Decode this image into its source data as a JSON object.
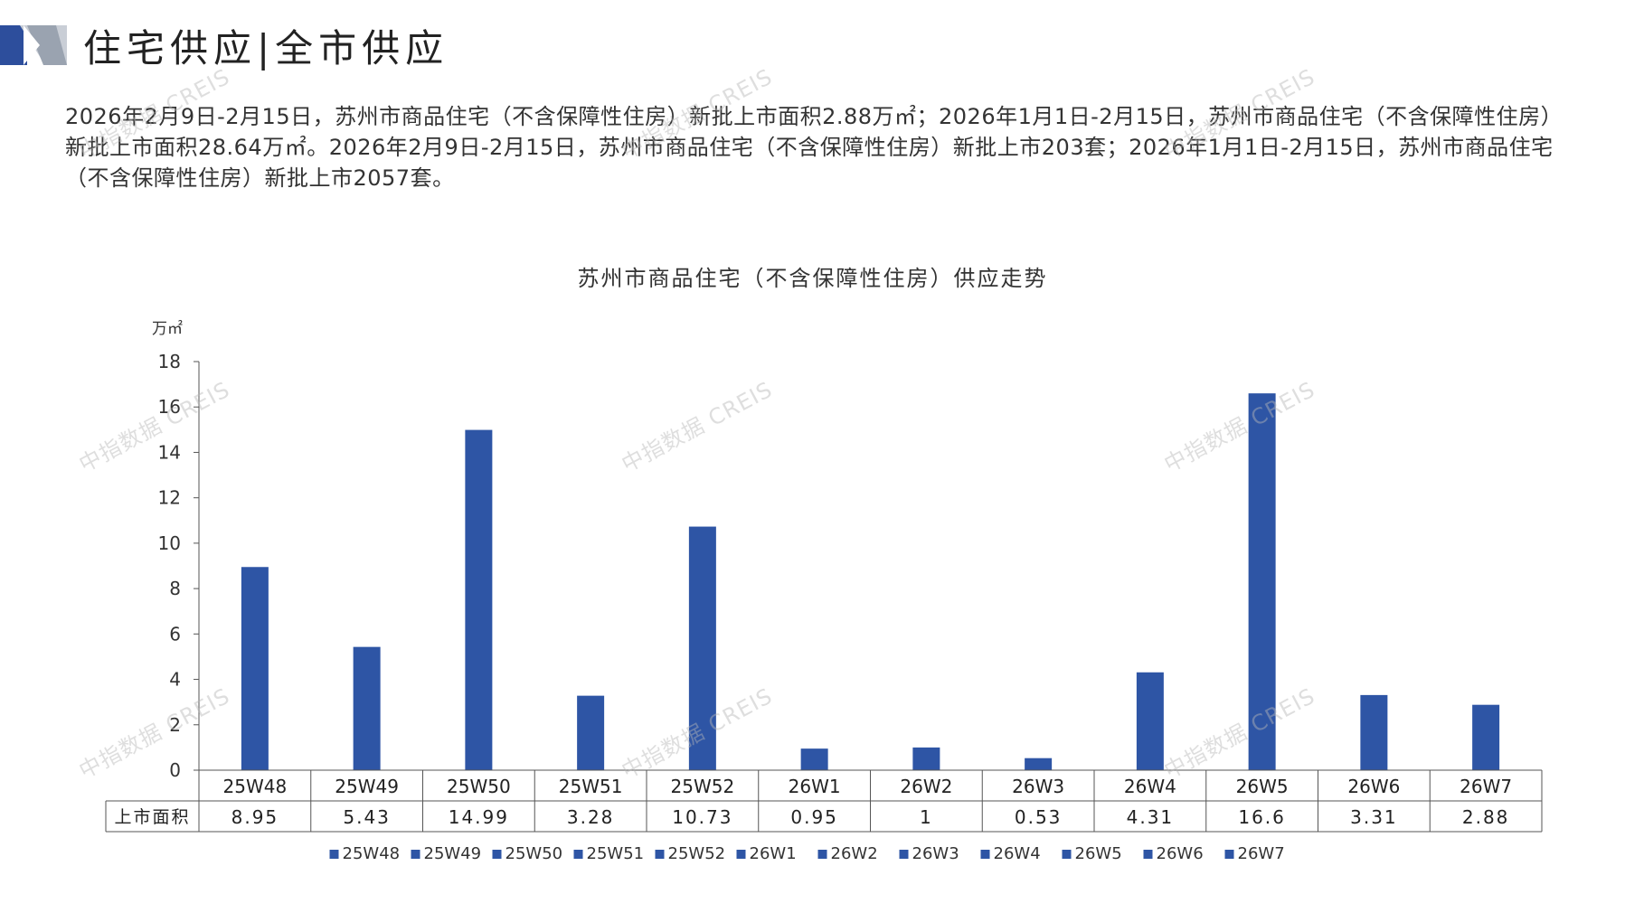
{
  "header": {
    "title": "住宅供应|全市供应"
  },
  "summary": "2026年2月9日-2月15日，苏州市商品住宅（不含保障性住房）新批上市面积2.88万㎡；2026年1月1日-2月15日，苏州市商品住宅（不含保障性住房）新批上市面积28.64万㎡。2026年2月9日-2月15日，苏州市商品住宅（不含保障性住房）新批上市203套；2026年1月1日-2月15日，苏州市商品住宅（不含保障性住房）新批上市2057套。",
  "watermark": "中指数据 CREIS",
  "colors": {
    "bar": "#2E55A5",
    "logo_blue": "#2D4E9C",
    "logo_gray": "#9AA3B0"
  },
  "chart_data": {
    "type": "bar",
    "title": "苏州市商品住宅（不含保障性住房）供应走势",
    "ylabel": "万㎡",
    "ylim": [
      0,
      18
    ],
    "yticks": [
      "0",
      "2",
      "4",
      "6",
      "8",
      "10",
      "12",
      "14",
      "16",
      "18"
    ],
    "categories": [
      "25W48",
      "25W49",
      "25W50",
      "25W51",
      "25W52",
      "26W1",
      "26W2",
      "26W3",
      "26W4",
      "26W5",
      "26W6",
      "26W7"
    ],
    "series": [
      {
        "name": "上市面积",
        "values": [
          8.95,
          5.43,
          14.99,
          3.28,
          10.73,
          0.95,
          1,
          0.53,
          4.31,
          16.6,
          3.31,
          2.88
        ],
        "labels": [
          "8.95",
          "5.43",
          "14.99",
          "3.28",
          "10.73",
          "0.95",
          "1",
          "0.53",
          "4.31",
          "16.6",
          "3.31",
          "2.88"
        ]
      }
    ],
    "legend": [
      "25W48",
      "25W49",
      "25W50",
      "25W51",
      "25W52",
      "26W1",
      "26W2",
      "26W3",
      "26W4",
      "26W5",
      "26W6",
      "26W7"
    ],
    "legend_position": "bottom",
    "grid": false
  }
}
